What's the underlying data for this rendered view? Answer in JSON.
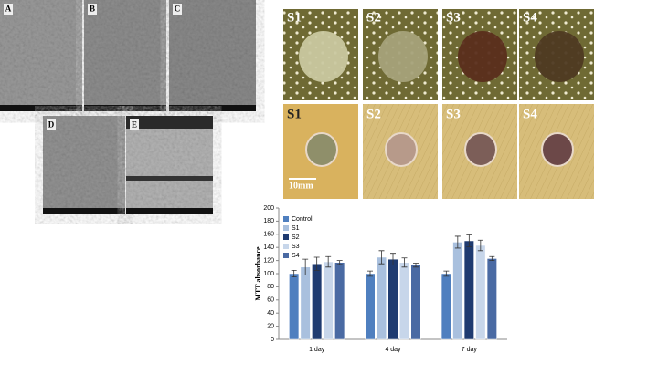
{
  "panels": {
    "sem_labels": [
      "A",
      "B",
      "C",
      "D",
      "E"
    ],
    "dish_labels_top": [
      "S1",
      "S2",
      "S3",
      "S4"
    ],
    "dish_labels_bottom": [
      "S1",
      "S2",
      "S3",
      "S4"
    ],
    "scale_bar": "10mm"
  },
  "chart_data": {
    "type": "bar",
    "ylabel": "MTT absorbance",
    "categories": [
      "1 day",
      "4 day",
      "7 day"
    ],
    "series": [
      {
        "name": "Control",
        "color": "#4f7fbf",
        "values": [
          100,
          100,
          100
        ],
        "errors": [
          5,
          4,
          4
        ]
      },
      {
        "name": "S1",
        "color": "#a9c0de",
        "values": [
          110,
          125,
          148
        ],
        "errors": [
          12,
          10,
          9
        ]
      },
      {
        "name": "S2",
        "color": "#1f3b70",
        "values": [
          115,
          122,
          150
        ],
        "errors": [
          10,
          9,
          9
        ]
      },
      {
        "name": "S3",
        "color": "#c7d6ea",
        "values": [
          118,
          117,
          143
        ],
        "errors": [
          8,
          7,
          8
        ]
      },
      {
        "name": "S4",
        "color": "#4a6aa3",
        "values": [
          117,
          113,
          123
        ],
        "errors": [
          3,
          3,
          3
        ]
      }
    ],
    "ylim": [
      0,
      200
    ],
    "yticks": [
      0,
      20,
      40,
      60,
      80,
      100,
      120,
      140,
      160,
      180,
      200
    ],
    "legend": "upper left"
  }
}
